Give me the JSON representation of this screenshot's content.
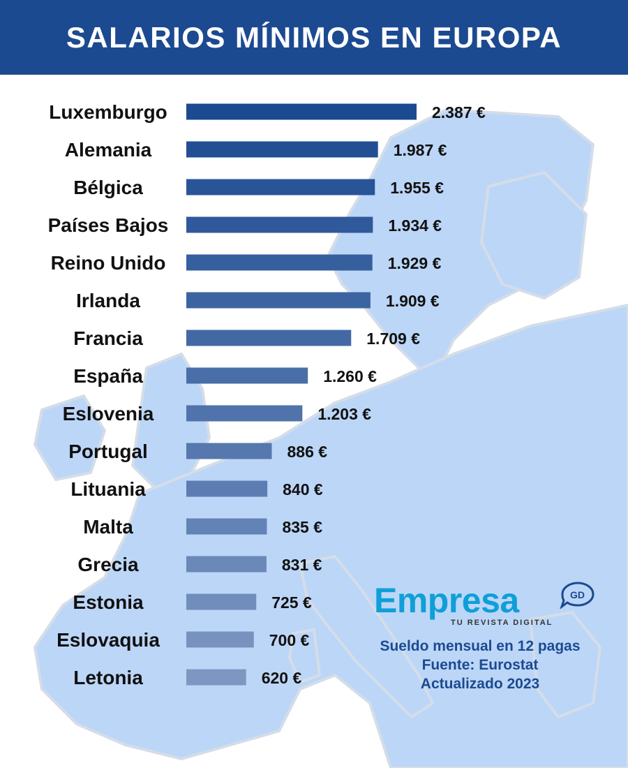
{
  "header": {
    "title": "SALARIOS MÍNIMOS EN EUROPA"
  },
  "colors": {
    "header_bg": "#1c4a91",
    "bar_dark": "#1c4a91",
    "bar_light": "#7d97c2",
    "map_fill": "#bcd6f7",
    "map_edge": "#d4dde8",
    "brand_blue": "#0f9fd8",
    "note_text": "#1c4a91"
  },
  "chart_data": {
    "type": "bar",
    "orientation": "horizontal",
    "title": "SALARIOS MÍNIMOS EN EUROPA",
    "unit": "€",
    "xlabel": "",
    "ylabel": "",
    "xlim": [
      0,
      2387
    ],
    "grid": false,
    "legend": "none",
    "categories": [
      "Luxemburgo",
      "Alemania",
      "Bélgica",
      "Países Bajos",
      "Reino Unido",
      "Irlanda",
      "Francia",
      "España",
      "Eslovenia",
      "Portugal",
      "Lituania",
      "Malta",
      "Grecia",
      "Estonia",
      "Eslovaquia",
      "Letonia"
    ],
    "values": [
      2387,
      1987,
      1955,
      1934,
      1929,
      1909,
      1709,
      1260,
      1203,
      886,
      840,
      835,
      831,
      725,
      700,
      620
    ],
    "value_labels": [
      "2.387 €",
      "1.987 €",
      "1.955 €",
      "1.934 €",
      "1.929 €",
      "1.909 €",
      "1.709 €",
      "1.260 €",
      "1.203 €",
      "886 €",
      "840 €",
      "835 €",
      "831 €",
      "725 €",
      "700 €",
      "620 €"
    ]
  },
  "brand": {
    "name": "Empresa",
    "tagline": "TU REVISTA DIGITAL",
    "badge": "GD"
  },
  "notes": {
    "line1": "Sueldo mensual en 12 pagas",
    "line2": "Fuente: Eurostat",
    "line3": "Actualizado 2023"
  }
}
